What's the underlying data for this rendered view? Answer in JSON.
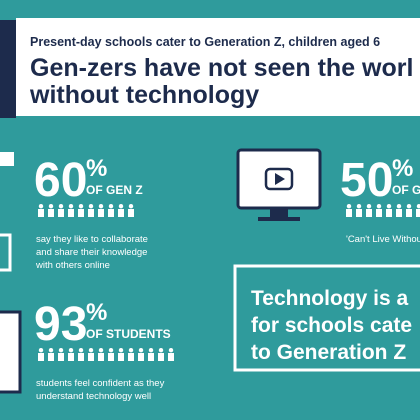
{
  "header": {
    "subtitle": "Present-day schools cater to Generation Z, children aged 6",
    "title_lines": [
      "Gen-zers have not seen the worl",
      "without technology"
    ]
  },
  "stats": [
    {
      "number": "60",
      "unit": "%",
      "group": "OF GEN Z",
      "lines": [
        "say they like to collaborate",
        "and share their knowledge",
        "with others online"
      ]
    },
    {
      "number": "50",
      "unit": "%",
      "group": "OF GE",
      "lines": [
        "'Can't Live Withou"
      ]
    },
    {
      "number": "93",
      "unit": "%",
      "group": "OF STUDENTS",
      "lines": [
        "students feel confident as they",
        "understand technology well"
      ]
    }
  ],
  "callout": {
    "lines": [
      "Technology is a",
      "for schools cate",
      "to Generation Z"
    ]
  }
}
